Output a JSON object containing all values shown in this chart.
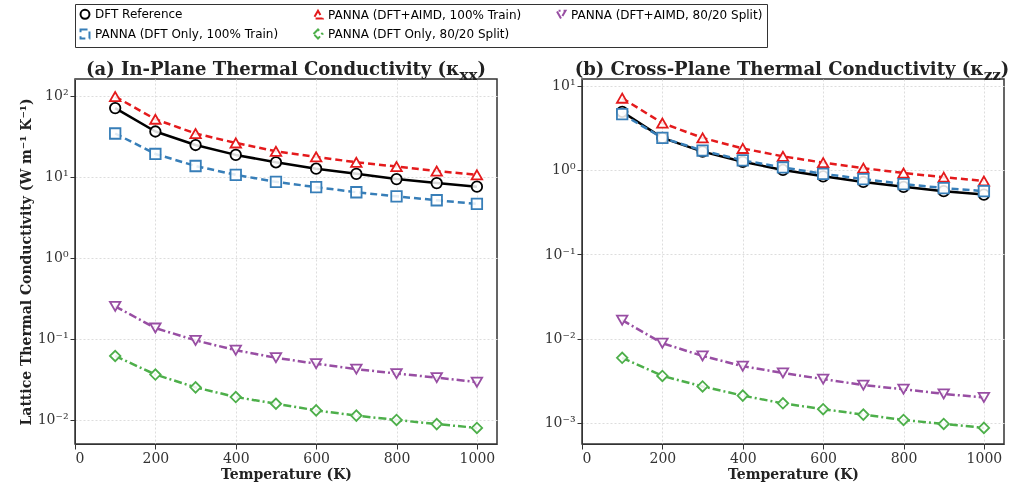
{
  "chart_data": [
    {
      "type": "line",
      "title": "(a) In-Plane Thermal Conductivity (κ$_{xx}$)",
      "xlabel": "Temperature (K)",
      "ylabel": "Lattice Thermal Conductivity (W m⁻¹ K⁻¹)",
      "x": [
        100,
        200,
        300,
        400,
        500,
        600,
        700,
        800,
        900,
        1000
      ],
      "xlim": [
        0,
        1050
      ],
      "xticks": [
        0,
        200,
        400,
        600,
        800,
        1000
      ],
      "ylim": [
        0.005,
        160
      ],
      "yticks": [
        {
          "value": 0.01,
          "label": "10⁻²"
        },
        {
          "value": 0.1,
          "label": "10⁻¹"
        },
        {
          "value": 1,
          "label": "10⁰"
        },
        {
          "value": 10,
          "label": "10¹"
        },
        {
          "value": 100,
          "label": "10²"
        }
      ],
      "log": "y",
      "grid": true,
      "legend": "top",
      "series": [
        {
          "name": "DFT Reference",
          "color": "#000000",
          "marker": "circle",
          "line_style": "solid",
          "values": [
            70,
            36,
            24.5,
            18.5,
            15,
            12.5,
            10.8,
            9.3,
            8.3,
            7.5
          ]
        },
        {
          "name": "PANNA (DFT+AIMD, 100% Train)",
          "color": "#e41a1c",
          "marker": "triangle",
          "line_style": "dashed",
          "values": [
            97,
            51,
            34,
            26,
            20.5,
            17.5,
            15,
            13.3,
            11.7,
            10.5
          ]
        },
        {
          "name": "PANNA (DFT+AIMD, 80/20 Split)",
          "color": "#984ea3",
          "marker": "triangle-down",
          "line_style": "dashdot",
          "values": [
            0.25,
            0.135,
            0.095,
            0.072,
            0.058,
            0.049,
            0.042,
            0.037,
            0.033,
            0.029
          ]
        },
        {
          "name": "PANNA (DFT Only, 100% Train)",
          "color": "#377eb8",
          "marker": "square",
          "line_style": "dashed",
          "values": [
            34,
            19,
            13.5,
            10.5,
            8.6,
            7.4,
            6.4,
            5.7,
            5.1,
            4.6
          ]
        },
        {
          "name": "PANNA (DFT Only, 80/20 Split)",
          "color": "#4daf4a",
          "marker": "diamond",
          "line_style": "dashdot",
          "values": [
            0.061,
            0.036,
            0.025,
            0.019,
            0.0157,
            0.013,
            0.0112,
            0.0099,
            0.0088,
            0.0079
          ]
        }
      ]
    },
    {
      "type": "line",
      "title": "(b) Cross-Plane Thermal Conductivity (κ$_{zz}$)",
      "xlabel": "Temperature (K)",
      "x": [
        100,
        200,
        300,
        400,
        500,
        600,
        700,
        800,
        900,
        1000
      ],
      "xlim": [
        0,
        1050
      ],
      "xticks": [
        0,
        200,
        400,
        600,
        800,
        1000
      ],
      "ylim": [
        0.00056,
        12
      ],
      "yticks": [
        {
          "value": 0.001,
          "label": "10⁻³"
        },
        {
          "value": 0.01,
          "label": "10⁻²"
        },
        {
          "value": 0.1,
          "label": "10⁻¹"
        },
        {
          "value": 1,
          "label": "10⁰"
        },
        {
          "value": 10,
          "label": "10¹"
        }
      ],
      "log": "y",
      "grid": true,
      "legend": "top",
      "series": [
        {
          "name": "DFT Reference",
          "color": "#000000",
          "marker": "circle",
          "line_style": "solid",
          "values": [
            4.9,
            2.4,
            1.65,
            1.25,
            1.0,
            0.84,
            0.72,
            0.63,
            0.56,
            0.51
          ]
        },
        {
          "name": "PANNA (DFT+AIMD, 100% Train)",
          "color": "#e41a1c",
          "marker": "triangle",
          "line_style": "dashed",
          "values": [
            7.1,
            3.6,
            2.4,
            1.8,
            1.45,
            1.22,
            1.05,
            0.92,
            0.82,
            0.74
          ]
        },
        {
          "name": "PANNA (DFT+AIMD, 80/20 Split)",
          "color": "#984ea3",
          "marker": "triangle-down",
          "line_style": "dashdot",
          "values": [
            0.0165,
            0.0088,
            0.0062,
            0.0047,
            0.0039,
            0.0033,
            0.0028,
            0.0025,
            0.0022,
            0.002
          ]
        },
        {
          "name": "PANNA (DFT Only, 100% Train)",
          "color": "#377eb8",
          "marker": "square",
          "line_style": "dashed",
          "values": [
            4.6,
            2.4,
            1.7,
            1.3,
            1.07,
            0.9,
            0.78,
            0.68,
            0.61,
            0.56
          ]
        },
        {
          "name": "PANNA (DFT Only, 80/20 Split)",
          "color": "#4daf4a",
          "marker": "diamond",
          "line_style": "dashdot",
          "values": [
            0.0059,
            0.0036,
            0.0027,
            0.0021,
            0.0017,
            0.00145,
            0.00125,
            0.00108,
            0.00097,
            0.00087
          ]
        }
      ]
    }
  ]
}
